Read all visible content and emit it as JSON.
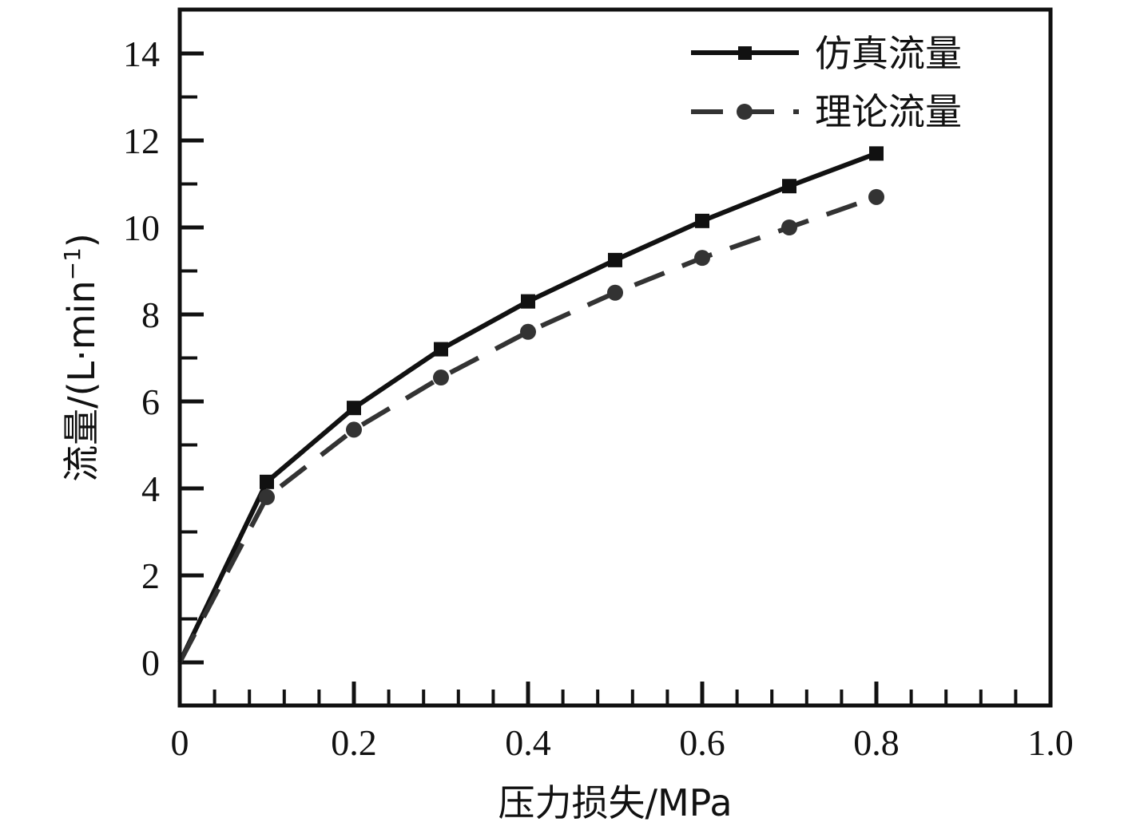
{
  "chart_data": {
    "type": "line",
    "xlabel": "压力损失/MPa",
    "ylabel": "流量/(L·min",
    "ylabel_sup": "−1",
    "ylabel_close": ")",
    "xlim": [
      0,
      1.0
    ],
    "ylim": [
      -1,
      15
    ],
    "x_ticks": [
      0,
      0.2,
      0.4,
      0.6,
      0.8,
      1.0
    ],
    "x_tick_labels": [
      "0",
      "0.2",
      "0.4",
      "0.6",
      "0.8",
      "1.0"
    ],
    "y_ticks": [
      0,
      2,
      4,
      6,
      8,
      10,
      12,
      14
    ],
    "y_tick_labels": [
      "0",
      "2",
      "4",
      "6",
      "8",
      "10",
      "12",
      "14"
    ],
    "grid": false,
    "legend_position": "top-right",
    "series": [
      {
        "name": "仿真流量",
        "style": "solid",
        "marker": "square",
        "color": "#111111",
        "x": [
          0,
          0.1,
          0.2,
          0.3,
          0.4,
          0.5,
          0.6,
          0.7,
          0.8
        ],
        "y": [
          0,
          4.15,
          5.85,
          7.2,
          8.3,
          9.25,
          10.15,
          10.95,
          11.7
        ]
      },
      {
        "name": "理论流量",
        "style": "dashed",
        "marker": "circle",
        "color": "#333333",
        "x": [
          0,
          0.1,
          0.2,
          0.3,
          0.4,
          0.5,
          0.6,
          0.7,
          0.8
        ],
        "y": [
          0,
          3.8,
          5.35,
          6.55,
          7.6,
          8.5,
          9.3,
          10.0,
          10.7
        ]
      }
    ]
  }
}
